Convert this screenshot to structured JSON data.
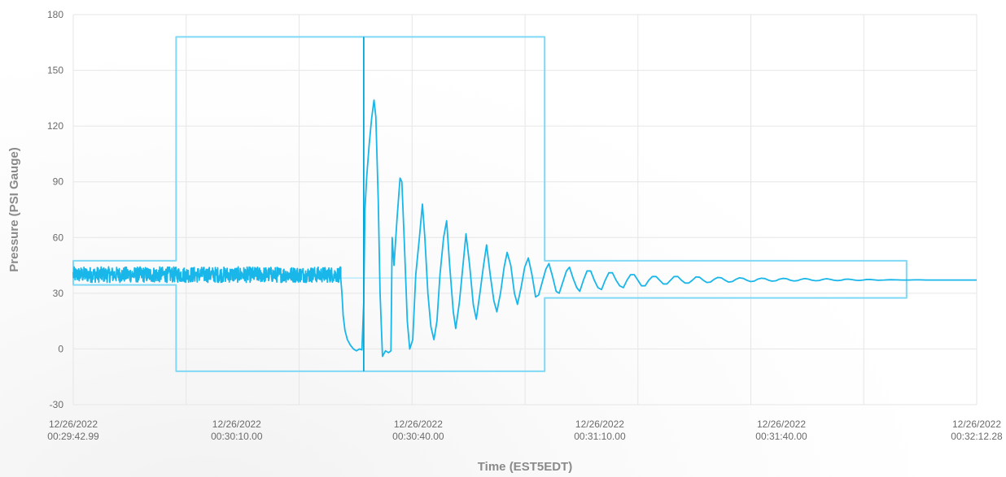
{
  "chart_data": {
    "type": "line",
    "xlabel": "Time (EST5EDT)",
    "ylabel": "Pressure (PSI Gauge)",
    "ylim": [
      -30,
      180
    ],
    "yticks": [
      -30,
      0,
      30,
      60,
      90,
      120,
      150,
      180
    ],
    "xlim_seconds_from_start": [
      0,
      149.29
    ],
    "xticks": [
      {
        "s": 0.0,
        "date": "12/26/2022",
        "time": "00:29:42.99"
      },
      {
        "s": 27.01,
        "date": "12/26/2022",
        "time": "00:30:10.00"
      },
      {
        "s": 57.01,
        "date": "12/26/2022",
        "time": "00:30:40.00"
      },
      {
        "s": 87.01,
        "date": "12/26/2022",
        "time": "00:31:10.00"
      },
      {
        "s": 117.01,
        "date": "12/26/2022",
        "time": "00:31:40.00"
      },
      {
        "s": 149.29,
        "date": "12/26/2022",
        "time": "00:32:12.28"
      }
    ],
    "vertical_gridlines_s": [
      18.66,
      37.33,
      55.99,
      74.66,
      93.31,
      111.97,
      130.63
    ],
    "grid": true,
    "series": [
      {
        "name": "",
        "color": "#19b6ea",
        "kind": "pressure",
        "steady_before_event": {
          "x_range": [
            0,
            44.2
          ],
          "center": 40,
          "noise_band": [
            34,
            46
          ]
        },
        "points": [
          [
            44.2,
            38
          ],
          [
            44.4,
            30
          ],
          [
            44.6,
            18
          ],
          [
            44.9,
            10
          ],
          [
            45.3,
            5
          ],
          [
            45.8,
            2
          ],
          [
            46.3,
            0
          ],
          [
            46.8,
            -1
          ],
          [
            47.3,
            0
          ],
          [
            47.7,
            -0.5
          ],
          [
            48.0,
            25
          ],
          [
            48.2,
            75
          ],
          [
            48.5,
            93
          ],
          [
            48.9,
            110
          ],
          [
            49.3,
            124
          ],
          [
            49.7,
            134
          ],
          [
            50.0,
            125
          ],
          [
            50.4,
            80
          ],
          [
            50.7,
            30
          ],
          [
            51.1,
            -4
          ],
          [
            51.6,
            -1
          ],
          [
            52.1,
            -2
          ],
          [
            52.5,
            -1
          ],
          [
            52.7,
            60
          ],
          [
            53.0,
            45
          ],
          [
            53.5,
            70
          ],
          [
            54.0,
            92
          ],
          [
            54.3,
            90
          ],
          [
            54.7,
            58
          ],
          [
            55.2,
            15
          ],
          [
            55.6,
            0
          ],
          [
            56.1,
            5
          ],
          [
            56.6,
            40
          ],
          [
            57.2,
            60
          ],
          [
            57.7,
            78
          ],
          [
            58.1,
            60
          ],
          [
            58.6,
            30
          ],
          [
            59.1,
            12
          ],
          [
            59.6,
            5
          ],
          [
            60.1,
            15
          ],
          [
            60.6,
            40
          ],
          [
            61.2,
            60
          ],
          [
            61.7,
            69
          ],
          [
            62.2,
            45
          ],
          [
            62.8,
            20
          ],
          [
            63.2,
            11
          ],
          [
            63.8,
            25
          ],
          [
            64.4,
            45
          ],
          [
            64.9,
            62
          ],
          [
            65.5,
            45
          ],
          [
            66.1,
            24
          ],
          [
            66.6,
            16
          ],
          [
            67.2,
            30
          ],
          [
            67.8,
            45
          ],
          [
            68.3,
            56
          ],
          [
            68.9,
            40
          ],
          [
            69.5,
            26
          ],
          [
            70.0,
            20
          ],
          [
            70.6,
            30
          ],
          [
            71.2,
            44
          ],
          [
            71.7,
            52
          ],
          [
            72.3,
            45
          ],
          [
            72.9,
            30
          ],
          [
            73.4,
            24
          ],
          [
            74.0,
            33
          ],
          [
            74.6,
            44
          ],
          [
            75.2,
            49
          ],
          [
            75.8,
            40
          ],
          [
            76.4,
            28
          ],
          [
            76.9,
            29
          ],
          [
            77.5,
            36
          ],
          [
            78.1,
            43
          ],
          [
            78.6,
            46
          ],
          [
            79.2,
            39
          ],
          [
            79.8,
            31
          ],
          [
            80.3,
            30
          ],
          [
            80.9,
            36
          ],
          [
            81.5,
            42
          ],
          [
            82.0,
            44
          ],
          [
            82.6,
            38
          ],
          [
            83.2,
            33
          ],
          [
            83.7,
            31
          ],
          [
            84.3,
            37
          ],
          [
            84.9,
            42
          ],
          [
            85.5,
            42
          ],
          [
            86.1,
            37
          ],
          [
            86.7,
            33
          ],
          [
            87.3,
            32
          ],
          [
            87.9,
            37
          ],
          [
            88.5,
            41
          ],
          [
            89.1,
            41
          ],
          [
            89.7,
            37
          ],
          [
            90.3,
            34
          ],
          [
            90.9,
            33
          ],
          [
            91.5,
            37
          ],
          [
            92.1,
            40
          ],
          [
            92.7,
            40
          ],
          [
            93.3,
            37
          ],
          [
            93.9,
            34
          ],
          [
            94.5,
            34
          ],
          [
            95.1,
            37
          ],
          [
            95.7,
            39
          ],
          [
            96.3,
            39
          ],
          [
            96.9,
            37
          ],
          [
            97.5,
            35
          ],
          [
            98.1,
            35
          ],
          [
            98.7,
            37
          ],
          [
            99.3,
            39
          ],
          [
            99.9,
            39
          ],
          [
            100.5,
            37
          ],
          [
            101.1,
            35.5
          ],
          [
            101.7,
            35.5
          ],
          [
            102.3,
            37
          ],
          [
            102.9,
            38.8
          ],
          [
            103.5,
            38.6
          ],
          [
            104.1,
            37
          ],
          [
            104.7,
            35.8
          ],
          [
            105.3,
            36
          ],
          [
            105.9,
            37.5
          ],
          [
            106.5,
            38.5
          ],
          [
            107.1,
            38.3
          ],
          [
            107.7,
            37
          ],
          [
            108.3,
            36
          ],
          [
            108.9,
            36.3
          ],
          [
            109.5,
            37.5
          ],
          [
            110.1,
            38.3
          ],
          [
            110.7,
            38
          ],
          [
            111.3,
            37
          ],
          [
            111.9,
            36.3
          ],
          [
            112.5,
            36.5
          ],
          [
            113.1,
            37.6
          ],
          [
            113.7,
            38.1
          ],
          [
            114.3,
            37.9
          ],
          [
            114.9,
            37
          ],
          [
            115.5,
            36.5
          ],
          [
            116.1,
            36.7
          ],
          [
            116.7,
            37.6
          ],
          [
            117.3,
            38
          ],
          [
            117.9,
            37.8
          ],
          [
            118.5,
            37
          ],
          [
            119.1,
            36.6
          ],
          [
            119.7,
            36.8
          ],
          [
            120.3,
            37.5
          ],
          [
            120.9,
            37.9
          ],
          [
            121.5,
            37.6
          ],
          [
            122.1,
            37
          ],
          [
            122.7,
            36.7
          ],
          [
            123.3,
            36.9
          ],
          [
            123.9,
            37.5
          ],
          [
            124.5,
            37.8
          ],
          [
            125.1,
            37.5
          ],
          [
            125.7,
            37
          ],
          [
            126.3,
            36.8
          ],
          [
            126.9,
            37
          ],
          [
            127.5,
            37.5
          ],
          [
            128.1,
            37.6
          ],
          [
            128.7,
            37.3
          ],
          [
            129.3,
            37
          ],
          [
            129.9,
            36.9
          ],
          [
            130.5,
            37.1
          ],
          [
            131.1,
            37.4
          ],
          [
            131.7,
            37.4
          ],
          [
            132.3,
            37.2
          ],
          [
            133.0,
            37
          ],
          [
            134.0,
            37.1
          ],
          [
            135.0,
            37.3
          ],
          [
            136.0,
            37.2
          ],
          [
            137.0,
            37.1
          ],
          [
            138.0,
            37.1
          ],
          [
            139.0,
            37.2
          ],
          [
            140.0,
            37.2
          ],
          [
            141.0,
            37.1
          ],
          [
            142.0,
            37.1
          ],
          [
            143.0,
            37.1
          ],
          [
            144.0,
            37.1
          ],
          [
            145.0,
            37.1
          ],
          [
            146.0,
            37.1
          ],
          [
            147.0,
            37.1
          ],
          [
            148.0,
            37.1
          ],
          [
            149.29,
            37.1
          ]
        ]
      },
      {
        "name": "",
        "color": "#7fd9f6",
        "kind": "envelope",
        "points": [
          [
            0,
            47.5
          ],
          [
            17.0,
            47.5
          ],
          [
            17.0,
            168
          ],
          [
            77.9,
            168
          ],
          [
            77.9,
            47.5
          ],
          [
            137.7,
            47.5
          ],
          [
            137.7,
            27.5
          ],
          [
            77.9,
            27.5
          ],
          [
            77.9,
            -12
          ],
          [
            17.0,
            -12
          ],
          [
            17.0,
            34.5
          ],
          [
            0,
            34.5
          ]
        ]
      },
      {
        "name": "",
        "color": "#b7e9fa",
        "kind": "reference",
        "points": [
          [
            44.2,
            38.2
          ],
          [
            77.9,
            38.2
          ]
        ]
      },
      {
        "name": "",
        "color": "#0fa4d0",
        "kind": "event-marker",
        "points": [
          [
            48.0,
            -12
          ],
          [
            48.0,
            168
          ]
        ]
      }
    ]
  }
}
